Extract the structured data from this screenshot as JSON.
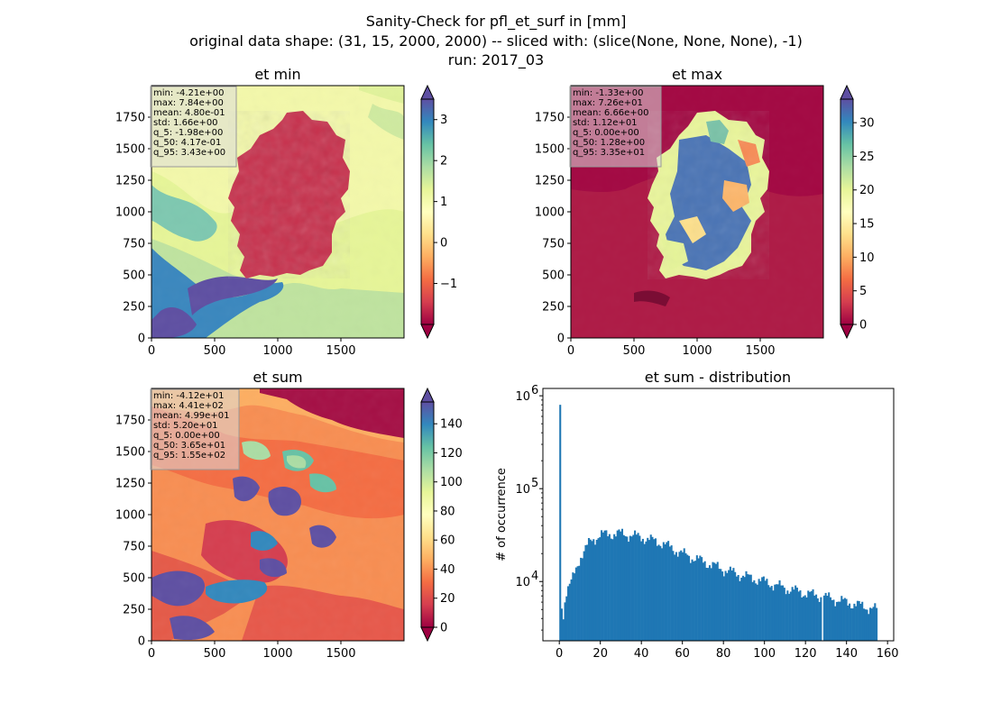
{
  "figure": {
    "title_lines": [
      "Sanity-Check for pfl_et_surf in [mm]",
      "original data shape: (31, 15, 2000, 2000) -- sliced with: (slice(None, None, None), -1)",
      "run: 2017_03"
    ]
  },
  "chart_data": [
    {
      "type": "heatmap",
      "title": "et min",
      "colormap": "Spectral",
      "xlim": [
        0,
        2000
      ],
      "ylim": [
        0,
        2000
      ],
      "xticks": [
        "0",
        "500",
        "1000",
        "1500"
      ],
      "yticks": [
        "0",
        "250",
        "500",
        "750",
        "1000",
        "1250",
        "1500",
        "1750"
      ],
      "colorbar": {
        "min": -2,
        "max": 3.5,
        "extend": "both",
        "ticks": [
          "−1",
          "0",
          "1",
          "2",
          "3"
        ],
        "tick_values": [
          -1,
          0,
          1,
          2,
          3
        ]
      },
      "stats": [
        "min: -4.21e+00",
        "max: 7.84e+00",
        "mean: 4.80e-01",
        "std: 1.66e+00",
        "q_5: -1.98e+00",
        "q_50: 4.17e-01",
        "q_95: 3.43e+00"
      ]
    },
    {
      "type": "heatmap",
      "title": "et max",
      "colormap": "Spectral",
      "xlim": [
        0,
        2000
      ],
      "ylim": [
        0,
        2000
      ],
      "xticks": [
        "0",
        "500",
        "1000",
        "1500"
      ],
      "yticks": [
        "0",
        "250",
        "500",
        "750",
        "1000",
        "1250",
        "1500",
        "1750"
      ],
      "colorbar": {
        "min": 0,
        "max": 33.5,
        "extend": "both",
        "ticks": [
          "0",
          "5",
          "10",
          "15",
          "20",
          "25",
          "30"
        ],
        "tick_values": [
          0,
          5,
          10,
          15,
          20,
          25,
          30
        ]
      },
      "stats": [
        "min: -1.33e+00",
        "max: 7.26e+01",
        "mean: 6.66e+00",
        "std: 1.12e+01",
        "q_5: 0.00e+00",
        "q_50: 1.28e+00",
        "q_95: 3.35e+01"
      ]
    },
    {
      "type": "heatmap",
      "title": "et sum",
      "colormap": "Spectral",
      "xlim": [
        0,
        2000
      ],
      "ylim": [
        0,
        2000
      ],
      "xticks": [
        "0",
        "500",
        "1000",
        "1500"
      ],
      "yticks": [
        "0",
        "250",
        "500",
        "750",
        "1000",
        "1250",
        "1500",
        "1750"
      ],
      "colorbar": {
        "min": 0,
        "max": 155,
        "extend": "both",
        "ticks": [
          "0",
          "20",
          "40",
          "60",
          "80",
          "100",
          "120",
          "140"
        ],
        "tick_values": [
          0,
          20,
          40,
          60,
          80,
          100,
          120,
          140
        ]
      },
      "stats": [
        "min: -4.12e+01",
        "max: 4.41e+02",
        "mean: 4.99e+01",
        "std: 5.20e+01",
        "q_5: 0.00e+00",
        "q_50: 3.65e+01",
        "q_95: 1.55e+02"
      ]
    },
    {
      "type": "bar",
      "title": "et sum - distribution",
      "xlabel": "",
      "ylabel": "# of occurrence",
      "yscale": "log",
      "xlim": [
        -8,
        163
      ],
      "ylim": [
        2300,
        1200000
      ],
      "xticks": [
        0,
        20,
        40,
        60,
        80,
        100,
        120,
        140,
        160
      ],
      "yticks": [
        {
          "value": 10000,
          "base": "10",
          "exp": "4"
        },
        {
          "value": 100000,
          "base": "10",
          "exp": "5"
        },
        {
          "value": 1000000,
          "base": "10",
          "exp": "6"
        }
      ],
      "color": "#1f77b4",
      "bin_width": 0.775,
      "anchors": [
        {
          "x": 0,
          "y": 800000
        },
        {
          "x": 0.8,
          "y": 6500
        },
        {
          "x": 2,
          "y": 4200
        },
        {
          "x": 3,
          "y": 7500
        },
        {
          "x": 6,
          "y": 10000
        },
        {
          "x": 10,
          "y": 18000
        },
        {
          "x": 15,
          "y": 27000
        },
        {
          "x": 20,
          "y": 32000
        },
        {
          "x": 30,
          "y": 33000
        },
        {
          "x": 40,
          "y": 30000
        },
        {
          "x": 50,
          "y": 26000
        },
        {
          "x": 60,
          "y": 20000
        },
        {
          "x": 70,
          "y": 16500
        },
        {
          "x": 80,
          "y": 13500
        },
        {
          "x": 90,
          "y": 11500
        },
        {
          "x": 100,
          "y": 10000
        },
        {
          "x": 110,
          "y": 8500
        },
        {
          "x": 120,
          "y": 7500
        },
        {
          "x": 130,
          "y": 6800
        },
        {
          "x": 140,
          "y": 6000
        },
        {
          "x": 150,
          "y": 5300
        },
        {
          "x": 155,
          "y": 5000
        }
      ],
      "outliers": [
        {
          "x": 128.5,
          "y": 2300
        }
      ]
    }
  ]
}
